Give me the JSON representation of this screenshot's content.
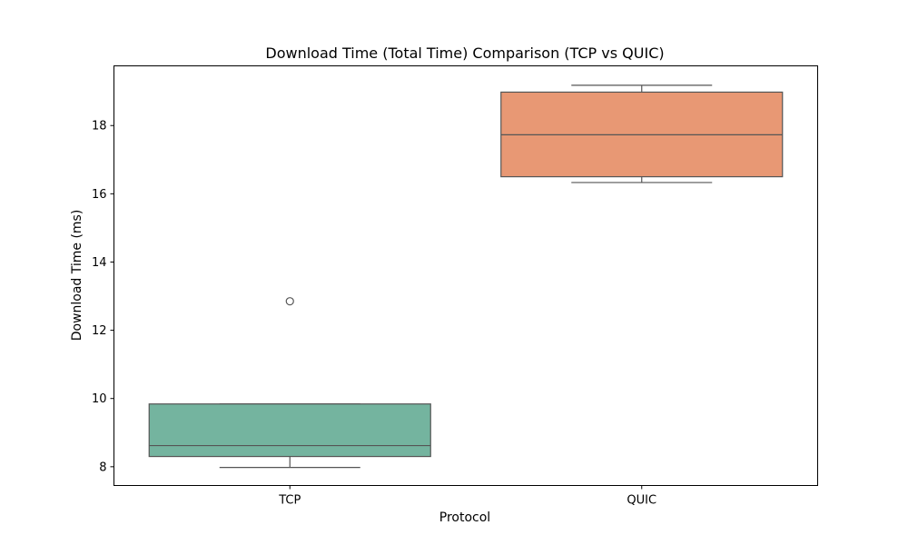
{
  "chart_data": {
    "type": "box",
    "title": "Download Time (Total Time) Comparison (TCP vs QUIC)",
    "xlabel": "Protocol",
    "ylabel": "Download Time (ms)",
    "categories": [
      "TCP",
      "QUIC"
    ],
    "ylim": [
      7.45,
      19.75
    ],
    "yticks": [
      8,
      10,
      12,
      14,
      16,
      18
    ],
    "grid": false,
    "boxes": [
      {
        "name": "TCP",
        "whisker_low": 7.98,
        "q1": 8.3,
        "median": 8.62,
        "q3": 9.84,
        "whisker_high": 9.84,
        "outliers": [
          12.85
        ],
        "color": "#74b49f"
      },
      {
        "name": "QUIC",
        "whisker_low": 16.33,
        "q1": 16.5,
        "median": 17.73,
        "q3": 18.98,
        "whisker_high": 19.18,
        "outliers": [],
        "color": "#e89874"
      }
    ],
    "line_color": "#555555"
  }
}
